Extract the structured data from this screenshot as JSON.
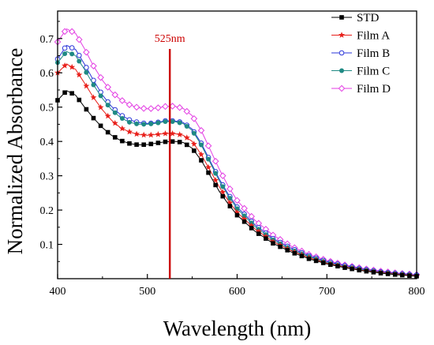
{
  "chart_data": {
    "type": "line",
    "xlabel": "Wavelength (nm)",
    "ylabel": "Normalized Absorbance",
    "xlim": [
      400,
      800
    ],
    "ylim": [
      0,
      0.78
    ],
    "xticks": [
      400,
      500,
      600,
      700,
      800
    ],
    "xtick_labels": [
      "400",
      "500",
      "600",
      "700",
      "800"
    ],
    "yticks": [
      0.1,
      0.2,
      0.3,
      0.4,
      0.5,
      0.6,
      0.7
    ],
    "ytick_labels": [
      "0.1",
      "0.2",
      "0.3",
      "0.4",
      "0.5",
      "0.6",
      "0.7"
    ],
    "grid": false,
    "legend_position": "top-right",
    "annotation": {
      "label": "525nm",
      "x": 525,
      "color": "#cc0000"
    },
    "x": [
      400,
      410,
      420,
      430,
      440,
      450,
      460,
      470,
      480,
      490,
      500,
      510,
      520,
      530,
      540,
      550,
      560,
      570,
      580,
      590,
      600,
      620,
      640,
      660,
      680,
      700,
      720,
      740,
      760,
      780,
      800
    ],
    "series": [
      {
        "name": "STD",
        "color": "#000000",
        "marker": "square",
        "values": [
          0.52,
          0.548,
          0.535,
          0.5,
          0.468,
          0.44,
          0.418,
          0.403,
          0.394,
          0.39,
          0.391,
          0.395,
          0.399,
          0.4,
          0.397,
          0.38,
          0.345,
          0.3,
          0.255,
          0.218,
          0.185,
          0.138,
          0.103,
          0.078,
          0.058,
          0.043,
          0.032,
          0.023,
          0.016,
          0.011,
          0.007
        ]
      },
      {
        "name": "Film A",
        "color": "#e8201b",
        "marker": "star",
        "values": [
          0.6,
          0.626,
          0.61,
          0.57,
          0.528,
          0.492,
          0.462,
          0.44,
          0.428,
          0.42,
          0.418,
          0.42,
          0.423,
          0.423,
          0.418,
          0.4,
          0.362,
          0.315,
          0.268,
          0.228,
          0.193,
          0.145,
          0.108,
          0.082,
          0.061,
          0.045,
          0.034,
          0.024,
          0.017,
          0.012,
          0.008
        ]
      },
      {
        "name": "Film B",
        "color": "#2a35d8",
        "marker": "open-circle",
        "values": [
          0.64,
          0.68,
          0.668,
          0.625,
          0.578,
          0.535,
          0.502,
          0.478,
          0.463,
          0.455,
          0.452,
          0.455,
          0.46,
          0.46,
          0.455,
          0.436,
          0.395,
          0.343,
          0.291,
          0.247,
          0.209,
          0.157,
          0.117,
          0.089,
          0.067,
          0.05,
          0.038,
          0.028,
          0.02,
          0.015,
          0.011
        ]
      },
      {
        "name": "Film C",
        "color": "#1f8a84",
        "marker": "filled-circle",
        "values": [
          0.63,
          0.662,
          0.65,
          0.61,
          0.565,
          0.525,
          0.493,
          0.47,
          0.456,
          0.45,
          0.45,
          0.453,
          0.458,
          0.458,
          0.452,
          0.432,
          0.39,
          0.338,
          0.286,
          0.242,
          0.204,
          0.152,
          0.113,
          0.085,
          0.064,
          0.047,
          0.035,
          0.026,
          0.018,
          0.013,
          0.009
        ]
      },
      {
        "name": "Film D",
        "color": "#e33ee3",
        "marker": "open-diamond",
        "values": [
          0.69,
          0.728,
          0.715,
          0.67,
          0.62,
          0.578,
          0.545,
          0.522,
          0.507,
          0.498,
          0.495,
          0.497,
          0.502,
          0.503,
          0.496,
          0.475,
          0.432,
          0.376,
          0.32,
          0.27,
          0.228,
          0.17,
          0.127,
          0.095,
          0.071,
          0.053,
          0.04,
          0.03,
          0.022,
          0.016,
          0.012
        ]
      }
    ]
  }
}
